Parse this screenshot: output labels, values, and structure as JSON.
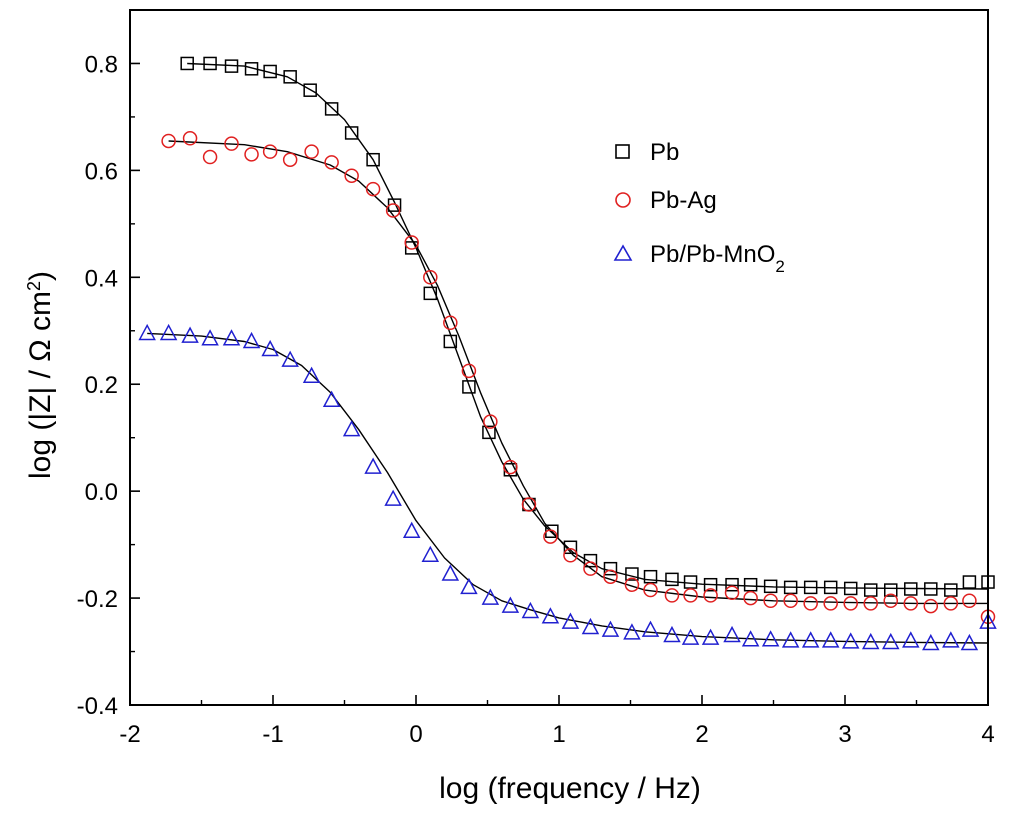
{
  "chart_data": {
    "type": "scatter",
    "xlabel": "log (frequency / Hz)",
    "ylabel": "log (|Z| / Ω cm²)",
    "xlim": [
      -2,
      4
    ],
    "ylim": [
      -0.4,
      0.9
    ],
    "xticks": [
      -2,
      -1,
      0,
      1,
      2,
      3,
      4
    ],
    "yticks": [
      -0.4,
      -0.2,
      0.0,
      0.2,
      0.4,
      0.6,
      0.8
    ],
    "ytick_labels": [
      "-0.4",
      "-0.2",
      "0.0",
      "0.2",
      "0.4",
      "0.6",
      "0.8"
    ],
    "grid": false,
    "legend_position": "top-right",
    "series": [
      {
        "name": "Pb",
        "marker": "square",
        "color": "#000000",
        "x": [
          -1.6,
          -1.44,
          -1.29,
          -1.15,
          -1.02,
          -0.88,
          -0.74,
          -0.59,
          -0.45,
          -0.3,
          -0.15,
          -0.03,
          0.1,
          0.24,
          0.37,
          0.51,
          0.66,
          0.79,
          0.95,
          1.08,
          1.22,
          1.36,
          1.51,
          1.64,
          1.79,
          1.92,
          2.06,
          2.21,
          2.34,
          2.48,
          2.62,
          2.76,
          2.9,
          3.04,
          3.18,
          3.32,
          3.46,
          3.6,
          3.74,
          3.87,
          4.0
        ],
        "y": [
          0.8,
          0.8,
          0.795,
          0.79,
          0.785,
          0.775,
          0.75,
          0.715,
          0.67,
          0.62,
          0.535,
          0.455,
          0.37,
          0.28,
          0.195,
          0.11,
          0.04,
          -0.025,
          -0.075,
          -0.105,
          -0.13,
          -0.145,
          -0.155,
          -0.16,
          -0.165,
          -0.17,
          -0.175,
          -0.175,
          -0.175,
          -0.178,
          -0.18,
          -0.18,
          -0.18,
          -0.182,
          -0.185,
          -0.185,
          -0.183,
          -0.183,
          -0.185,
          -0.17,
          -0.17
        ],
        "fit": [
          [
            -1.6,
            0.8
          ],
          [
            -1.2,
            0.795
          ],
          [
            -0.9,
            0.775
          ],
          [
            -0.7,
            0.745
          ],
          [
            -0.5,
            0.695
          ],
          [
            -0.3,
            0.62
          ],
          [
            -0.15,
            0.54
          ],
          [
            0.0,
            0.455
          ],
          [
            0.15,
            0.36
          ],
          [
            0.3,
            0.25
          ],
          [
            0.45,
            0.14
          ],
          [
            0.6,
            0.055
          ],
          [
            0.75,
            -0.015
          ],
          [
            0.9,
            -0.065
          ],
          [
            1.1,
            -0.115
          ],
          [
            1.3,
            -0.145
          ],
          [
            1.6,
            -0.165
          ],
          [
            2.0,
            -0.174
          ],
          [
            2.5,
            -0.179
          ],
          [
            3.0,
            -0.181
          ],
          [
            3.5,
            -0.182
          ],
          [
            4.0,
            -0.183
          ]
        ]
      },
      {
        "name": "Pb-Ag",
        "marker": "circle",
        "color": "#e02020",
        "x": [
          -1.73,
          -1.58,
          -1.44,
          -1.29,
          -1.15,
          -1.02,
          -0.88,
          -0.73,
          -0.59,
          -0.45,
          -0.3,
          -0.16,
          -0.03,
          0.1,
          0.24,
          0.37,
          0.52,
          0.66,
          0.79,
          0.94,
          1.08,
          1.22,
          1.36,
          1.51,
          1.64,
          1.79,
          1.92,
          2.06,
          2.21,
          2.34,
          2.48,
          2.62,
          2.76,
          2.9,
          3.04,
          3.18,
          3.32,
          3.46,
          3.6,
          3.74,
          3.87,
          4.0
        ],
        "y": [
          0.655,
          0.66,
          0.625,
          0.65,
          0.63,
          0.635,
          0.62,
          0.635,
          0.615,
          0.59,
          0.565,
          0.525,
          0.465,
          0.4,
          0.315,
          0.225,
          0.13,
          0.045,
          -0.025,
          -0.085,
          -0.12,
          -0.145,
          -0.16,
          -0.175,
          -0.185,
          -0.195,
          -0.195,
          -0.195,
          -0.19,
          -0.2,
          -0.205,
          -0.205,
          -0.21,
          -0.21,
          -0.21,
          -0.21,
          -0.205,
          -0.21,
          -0.215,
          -0.21,
          -0.205,
          -0.235
        ],
        "fit": [
          [
            -1.73,
            0.655
          ],
          [
            -1.2,
            0.648
          ],
          [
            -0.9,
            0.635
          ],
          [
            -0.6,
            0.61
          ],
          [
            -0.4,
            0.58
          ],
          [
            -0.2,
            0.53
          ],
          [
            0.0,
            0.46
          ],
          [
            0.15,
            0.385
          ],
          [
            0.3,
            0.29
          ],
          [
            0.45,
            0.185
          ],
          [
            0.6,
            0.09
          ],
          [
            0.75,
            0.01
          ],
          [
            0.9,
            -0.06
          ],
          [
            1.1,
            -0.12
          ],
          [
            1.3,
            -0.16
          ],
          [
            1.6,
            -0.185
          ],
          [
            2.0,
            -0.198
          ],
          [
            2.5,
            -0.205
          ],
          [
            3.0,
            -0.208
          ],
          [
            3.5,
            -0.21
          ],
          [
            4.0,
            -0.21
          ]
        ]
      },
      {
        "name": "Pb/Pb-MnO2",
        "marker": "triangle",
        "color": "#2020d0",
        "x": [
          -1.88,
          -1.73,
          -1.58,
          -1.44,
          -1.29,
          -1.15,
          -1.02,
          -0.88,
          -0.73,
          -0.59,
          -0.45,
          -0.3,
          -0.16,
          -0.03,
          0.1,
          0.24,
          0.37,
          0.52,
          0.66,
          0.8,
          0.94,
          1.08,
          1.22,
          1.36,
          1.51,
          1.64,
          1.79,
          1.92,
          2.06,
          2.21,
          2.34,
          2.48,
          2.62,
          2.76,
          2.9,
          3.04,
          3.18,
          3.32,
          3.46,
          3.6,
          3.74,
          3.87,
          4.0
        ],
        "y": [
          0.295,
          0.295,
          0.29,
          0.285,
          0.285,
          0.28,
          0.265,
          0.245,
          0.215,
          0.17,
          0.115,
          0.045,
          -0.015,
          -0.075,
          -0.12,
          -0.155,
          -0.18,
          -0.2,
          -0.215,
          -0.225,
          -0.235,
          -0.245,
          -0.255,
          -0.26,
          -0.265,
          -0.26,
          -0.27,
          -0.275,
          -0.275,
          -0.27,
          -0.278,
          -0.278,
          -0.28,
          -0.28,
          -0.28,
          -0.282,
          -0.283,
          -0.283,
          -0.28,
          -0.285,
          -0.28,
          -0.285,
          -0.245
        ],
        "fit": [
          [
            -1.88,
            0.295
          ],
          [
            -1.5,
            0.29
          ],
          [
            -1.2,
            0.28
          ],
          [
            -1.0,
            0.265
          ],
          [
            -0.8,
            0.235
          ],
          [
            -0.6,
            0.185
          ],
          [
            -0.4,
            0.115
          ],
          [
            -0.2,
            0.035
          ],
          [
            0.0,
            -0.055
          ],
          [
            0.2,
            -0.125
          ],
          [
            0.4,
            -0.175
          ],
          [
            0.6,
            -0.205
          ],
          [
            0.8,
            -0.222
          ],
          [
            1.0,
            -0.237
          ],
          [
            1.3,
            -0.252
          ],
          [
            1.6,
            -0.263
          ],
          [
            2.0,
            -0.272
          ],
          [
            2.5,
            -0.278
          ],
          [
            3.0,
            -0.281
          ],
          [
            3.5,
            -0.283
          ],
          [
            4.0,
            -0.284
          ]
        ]
      }
    ],
    "legend": [
      {
        "label": "Pb",
        "marker": "square",
        "color": "#000000"
      },
      {
        "label": "Pb-Ag",
        "marker": "circle",
        "color": "#e02020"
      },
      {
        "label": "Pb/Pb-MnO",
        "sub": "2",
        "marker": "triangle",
        "color": "#2020d0"
      }
    ],
    "axes_labels": {
      "x": "log (frequency / Hz)",
      "y_main": "log (|Z| / Ω cm",
      "y_sup": "2",
      "y_close": ")"
    }
  }
}
